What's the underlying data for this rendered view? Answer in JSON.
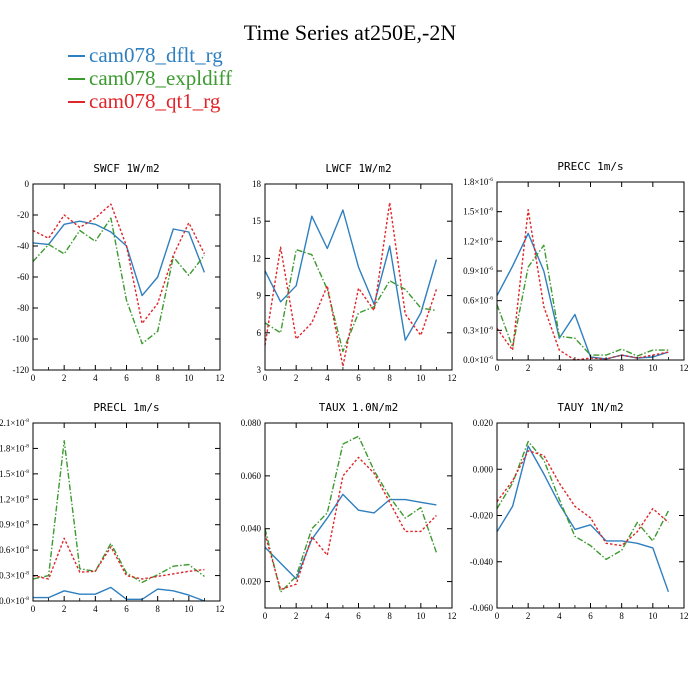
{
  "title": "Time Series at250E,-2N",
  "legend": [
    {
      "label": "cam078_dflt_rg",
      "color": "#2f7fbf"
    },
    {
      "label": "cam078_expldiff",
      "color": "#3c9a2f"
    },
    {
      "label": "cam078_qt1_rg",
      "color": "#e0262a"
    }
  ],
  "chart_data": [
    {
      "type": "line",
      "title": "SWCF   1W/m2",
      "x": [
        0,
        1,
        2,
        3,
        4,
        5,
        6,
        7,
        8,
        9,
        10,
        11
      ],
      "xlim": [
        0,
        12
      ],
      "xticks": [
        0,
        2,
        4,
        6,
        8,
        10,
        12
      ],
      "xticklabels": [
        "0",
        "2",
        "4",
        "6",
        "8",
        "10",
        "12"
      ],
      "ylim": [
        -120,
        0
      ],
      "yticks": [
        0,
        -20,
        -40,
        -60,
        -80,
        -100,
        -120
      ],
      "yticklabels": [
        "0",
        "-20",
        "-40",
        "-60",
        "-80",
        "-100",
        "-120"
      ],
      "series": [
        {
          "name": "cam078_dflt_rg",
          "values": [
            -38,
            -39,
            -26,
            -24,
            -26,
            -31,
            -40,
            -72,
            -60,
            -29,
            -31,
            -57
          ]
        },
        {
          "name": "cam078_expldiff",
          "values": [
            -50,
            -39,
            -45,
            -30,
            -37,
            -22,
            -75,
            -103,
            -95,
            -47,
            -59,
            -46
          ]
        },
        {
          "name": "cam078_qt1_rg",
          "values": [
            -30,
            -35,
            -20,
            -28,
            -22,
            -13,
            -40,
            -90,
            -77,
            -46,
            -25,
            -45
          ]
        }
      ]
    },
    {
      "type": "line",
      "title": "LWCF   1W/m2",
      "x": [
        0,
        1,
        2,
        3,
        4,
        5,
        6,
        7,
        8,
        9,
        10,
        11
      ],
      "xlim": [
        0,
        12
      ],
      "xticks": [
        0,
        2,
        4,
        6,
        8,
        10,
        12
      ],
      "xticklabels": [
        "0",
        "2",
        "4",
        "6",
        "8",
        "10",
        "12"
      ],
      "ylim": [
        3,
        18
      ],
      "yticks": [
        18,
        15,
        12,
        9,
        6,
        3
      ],
      "yticklabels": [
        "18",
        "15",
        "12",
        "9",
        "6",
        "3"
      ],
      "series": [
        {
          "name": "cam078_dflt_rg",
          "values": [
            11,
            8.5,
            9.8,
            15.4,
            12.8,
            15.9,
            11.3,
            8.3,
            13,
            5.4,
            7.6,
            11.9
          ]
        },
        {
          "name": "cam078_expldiff",
          "values": [
            6.8,
            6,
            12.7,
            12.3,
            9.5,
            4.5,
            7.6,
            8.1,
            10.2,
            9.5,
            8,
            7.8
          ]
        },
        {
          "name": "cam078_qt1_rg",
          "values": [
            5,
            12.9,
            5.5,
            6.8,
            9.8,
            3.3,
            9.6,
            7.8,
            16.5,
            7.5,
            5.8,
            9.5
          ]
        }
      ]
    },
    {
      "type": "line",
      "title": "PRECC   1m/s",
      "x": [
        0,
        1,
        2,
        3,
        4,
        5,
        6,
        7,
        8,
        9,
        10,
        11
      ],
      "xlim": [
        0,
        12
      ],
      "xticks": [
        0,
        2,
        4,
        6,
        8,
        10,
        12
      ],
      "xticklabels": [
        "0",
        "2",
        "4",
        "6",
        "8",
        "10",
        "12"
      ],
      "ylim": [
        0,
        1.8e-06
      ],
      "yticks": [
        1.8e-06,
        1.5e-06,
        1.2e-06,
        9e-07,
        6e-07,
        3e-07,
        0
      ],
      "yticklabels": [
        "1.8×10",
        "1.5×10",
        "1.2×10",
        "0.9×10",
        "0.6×10",
        "0.3×10",
        "0.0×10"
      ],
      "ytick_exponent": "-6",
      "series": [
        {
          "name": "cam078_dflt_rg",
          "values": [
            6.5e-07,
            9.5e-07,
            1.28e-06,
            9e-07,
            2.2e-07,
            4.6e-07,
            3e-08,
            1e-08,
            5e-08,
            2e-08,
            3e-08,
            8e-08
          ]
        },
        {
          "name": "cam078_expldiff",
          "values": [
            5.6e-07,
            1.3e-07,
            9.4e-07,
            1.16e-06,
            2.4e-07,
            2.2e-07,
            5e-08,
            5e-08,
            1.1e-07,
            4e-08,
            1e-07,
            1e-07
          ]
        },
        {
          "name": "cam078_qt1_rg",
          "values": [
            3.2e-07,
            1e-07,
            1.52e-06,
            5.4e-07,
            1e-07,
            0,
            2e-08,
            1e-08,
            5e-08,
            2e-08,
            5e-08,
            8e-08
          ]
        }
      ]
    },
    {
      "type": "line",
      "title": "PRECL   1m/s",
      "x": [
        0,
        1,
        2,
        3,
        4,
        5,
        6,
        7,
        8,
        9,
        10,
        11
      ],
      "xlim": [
        0,
        12
      ],
      "xticks": [
        0,
        2,
        4,
        6,
        8,
        10,
        12
      ],
      "xticklabels": [
        "0",
        "2",
        "4",
        "6",
        "8",
        "10",
        "12"
      ],
      "ylim": [
        0,
        2.1e-08
      ],
      "yticks": [
        2.1e-08,
        1.8e-08,
        1.5e-08,
        1.2e-08,
        9e-09,
        6e-09,
        3e-09,
        0
      ],
      "yticklabels": [
        "2.1×10",
        "1.8×10",
        "1.5×10",
        "1.2×10",
        "0.9×10",
        "0.6×10",
        "0.3×10",
        "0.0×10"
      ],
      "ytick_exponent": "-8",
      "series": [
        {
          "name": "cam078_dflt_rg",
          "values": [
            4e-10,
            4e-10,
            1.2e-09,
            8e-10,
            8e-10,
            1.6e-09,
            2e-10,
            2e-10,
            1.4e-09,
            1.2e-09,
            7e-10,
            0
          ]
        },
        {
          "name": "cam078_expldiff",
          "values": [
            2.6e-09,
            3e-09,
            1.89e-08,
            3.8e-09,
            3.5e-09,
            6.8e-09,
            3.3e-09,
            2.2e-09,
            3.1e-09,
            4.1e-09,
            4.3e-09,
            2.9e-09
          ]
        },
        {
          "name": "cam078_qt1_rg",
          "values": [
            3e-09,
            2.6e-09,
            7.4e-09,
            3.4e-09,
            3.5e-09,
            6.4e-09,
            3e-09,
            2.6e-09,
            2.9e-09,
            3.2e-09,
            3.5e-09,
            3.7e-09
          ]
        }
      ]
    },
    {
      "type": "line",
      "title": "TAUX   1.0N/m2",
      "x": [
        0,
        1,
        2,
        3,
        4,
        5,
        6,
        7,
        8,
        9,
        10,
        11
      ],
      "xlim": [
        0,
        12
      ],
      "xticks": [
        0,
        2,
        4,
        6,
        8,
        10,
        12
      ],
      "xticklabels": [
        "0",
        "2",
        "4",
        "6",
        "8",
        "10",
        "12"
      ],
      "ylim": [
        0.01,
        0.08
      ],
      "yticks": [
        0.08,
        0.06,
        0.04,
        0.02
      ],
      "yticklabels": [
        "0.080",
        "0.060",
        "0.040",
        "0.020"
      ],
      "series": [
        {
          "name": "cam078_dflt_rg",
          "values": [
            0.033,
            0.027,
            0.021,
            0.036,
            0.044,
            0.053,
            0.047,
            0.046,
            0.051,
            0.051,
            0.05,
            0.049
          ]
        },
        {
          "name": "cam078_expldiff",
          "values": [
            0.04,
            0.016,
            0.022,
            0.04,
            0.046,
            0.072,
            0.075,
            0.062,
            0.052,
            0.044,
            0.048,
            0.031
          ]
        },
        {
          "name": "cam078_qt1_rg",
          "values": [
            0.038,
            0.017,
            0.019,
            0.037,
            0.03,
            0.06,
            0.067,
            0.061,
            0.05,
            0.039,
            0.039,
            0.045
          ]
        }
      ]
    },
    {
      "type": "line",
      "title": "TAUY   1N/m2",
      "x": [
        0,
        1,
        2,
        3,
        4,
        5,
        6,
        7,
        8,
        9,
        10,
        11
      ],
      "xlim": [
        0,
        12
      ],
      "xticks": [
        0,
        2,
        4,
        6,
        8,
        10,
        12
      ],
      "xticklabels": [
        "0",
        "2",
        "4",
        "6",
        "8",
        "10",
        "12"
      ],
      "ylim": [
        -0.06,
        0.02
      ],
      "yticks": [
        0.02,
        0,
        -0.02,
        -0.04,
        -0.06
      ],
      "yticklabels": [
        "0.020",
        "0.000",
        "-0.020",
        "-0.040",
        "-0.060"
      ],
      "series": [
        {
          "name": "cam078_dflt_rg",
          "values": [
            -0.027,
            -0.016,
            0.01,
            -0.002,
            -0.015,
            -0.026,
            -0.024,
            -0.031,
            -0.031,
            -0.032,
            -0.034,
            -0.053
          ]
        },
        {
          "name": "cam078_expldiff",
          "values": [
            -0.017,
            -0.006,
            0.012,
            0.004,
            -0.013,
            -0.029,
            -0.033,
            -0.039,
            -0.035,
            -0.023,
            -0.031,
            -0.018
          ]
        },
        {
          "name": "cam078_qt1_rg",
          "values": [
            -0.014,
            -0.005,
            0.008,
            0.006,
            -0.006,
            -0.016,
            -0.021,
            -0.032,
            -0.033,
            -0.027,
            -0.017,
            -0.023
          ]
        }
      ]
    }
  ]
}
